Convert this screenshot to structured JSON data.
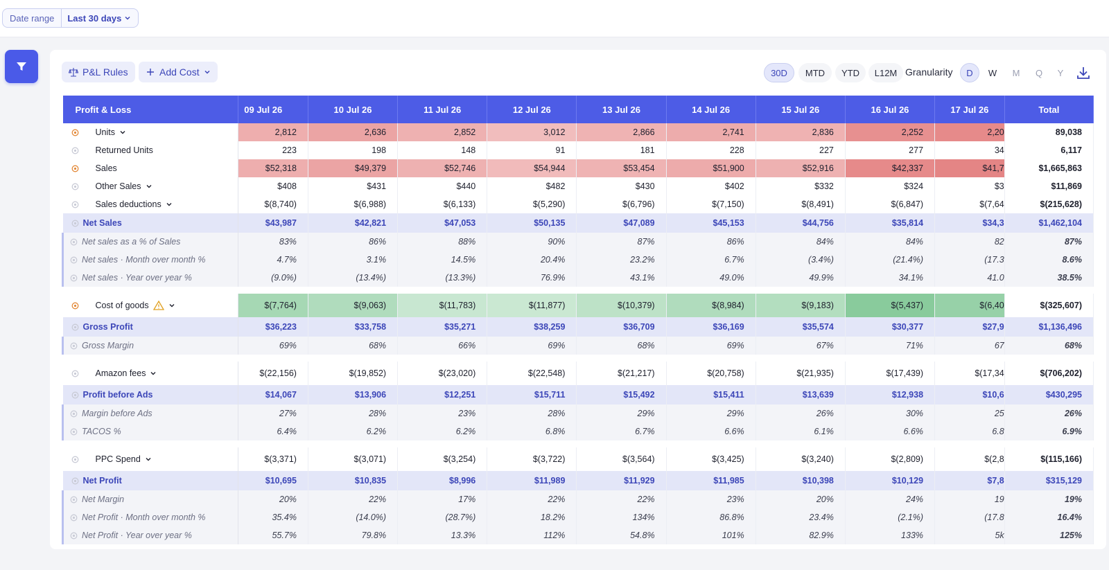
{
  "date_range": {
    "label": "Date range",
    "value": "Last 30 days"
  },
  "toolbar": {
    "pl_rules": "P&L Rules",
    "add_cost": "Add Cost",
    "periods": [
      "30D",
      "MTD",
      "YTD",
      "L12M"
    ],
    "active_period": "30D",
    "granularity_label": "Granularity",
    "granularity": [
      "D",
      "W",
      "M",
      "Q",
      "Y"
    ],
    "active_granularity": "D"
  },
  "table": {
    "header_first": "Profit & Loss",
    "dates": [
      "09 Jul 26",
      "10 Jul 26",
      "11 Jul 26",
      "12 Jul 26",
      "13 Jul 26",
      "14 Jul 26",
      "15 Jul 26",
      "16 Jul 26",
      "17 Jul 26"
    ],
    "total_label": "Total",
    "rows": [
      {
        "label": "Units",
        "type": "item",
        "icon": "orange",
        "chevron": true,
        "values": [
          "2,812",
          "2,636",
          "2,852",
          "3,012",
          "2,866",
          "2,741",
          "2,836",
          "2,252",
          "2,20"
        ],
        "total": "89,038",
        "heat": "red",
        "intensity": [
          0.45,
          0.55,
          0.42,
          0.3,
          0.4,
          0.47,
          0.41,
          0.75,
          0.8
        ]
      },
      {
        "label": "Returned Units",
        "type": "item",
        "icon": "gray",
        "values": [
          "223",
          "198",
          "148",
          "91",
          "181",
          "228",
          "227",
          "277",
          "34"
        ],
        "total": "6,117"
      },
      {
        "label": "Sales",
        "type": "item",
        "icon": "orange",
        "values": [
          "$52,318",
          "$49,379",
          "$52,746",
          "$54,944",
          "$53,454",
          "$51,900",
          "$52,916",
          "$42,337",
          "$41,7"
        ],
        "total": "$1,665,863",
        "heat": "red",
        "intensity": [
          0.45,
          0.55,
          0.42,
          0.32,
          0.4,
          0.48,
          0.42,
          0.8,
          0.85
        ]
      },
      {
        "label": "Other Sales",
        "type": "item",
        "icon": "gray",
        "chevron": true,
        "values": [
          "$408",
          "$431",
          "$440",
          "$482",
          "$430",
          "$402",
          "$332",
          "$324",
          "$3"
        ],
        "total": "$11,869"
      },
      {
        "label": "Sales deductions",
        "type": "item",
        "icon": "gray",
        "chevron": true,
        "values": [
          "$(8,740)",
          "$(6,988)",
          "$(6,133)",
          "$(5,290)",
          "$(6,796)",
          "$(7,150)",
          "$(8,491)",
          "$(6,847)",
          "$(7,64"
        ],
        "total": "$(215,628)"
      },
      {
        "label": "Net Sales",
        "type": "net",
        "values": [
          "$43,987",
          "$42,821",
          "$47,053",
          "$50,135",
          "$47,089",
          "$45,153",
          "$44,756",
          "$35,814",
          "$34,3"
        ],
        "total": "$1,462,104"
      },
      {
        "label": "Net sales as a % of Sales",
        "type": "pct",
        "values": [
          "83%",
          "86%",
          "88%",
          "90%",
          "87%",
          "86%",
          "84%",
          "84%",
          "82"
        ],
        "total": "87%"
      },
      {
        "label": "Net sales · Month over month %",
        "type": "pct",
        "values": [
          "4.7%",
          "3.1%",
          "14.5%",
          "20.4%",
          "23.2%",
          "6.7%",
          "(3.4%)",
          "(21.4%)",
          "(17.3"
        ],
        "total": "8.6%"
      },
      {
        "label": "Net sales · Year over year %",
        "type": "pct",
        "values": [
          "(9.0%)",
          "(13.4%)",
          "(13.3%)",
          "76.9%",
          "43.1%",
          "49.0%",
          "49.9%",
          "34.1%",
          "41.0"
        ],
        "total": "38.5%"
      },
      {
        "type": "gap"
      },
      {
        "label": "Cost of goods",
        "type": "item",
        "big": true,
        "icon": "orange",
        "warn": true,
        "chevron": true,
        "values": [
          "$(7,764)",
          "$(9,063)",
          "$(11,783)",
          "$(11,877)",
          "$(10,379)",
          "$(8,984)",
          "$(9,183)",
          "$(5,437)",
          "$(6,40"
        ],
        "total": "$(325,607)",
        "heat": "green",
        "intensity": [
          0.55,
          0.45,
          0.2,
          0.18,
          0.32,
          0.45,
          0.42,
          0.85,
          0.7
        ]
      },
      {
        "label": "Gross Profit",
        "type": "net",
        "values": [
          "$36,223",
          "$33,758",
          "$35,271",
          "$38,259",
          "$36,709",
          "$36,169",
          "$35,574",
          "$30,377",
          "$27,9"
        ],
        "total": "$1,136,496"
      },
      {
        "label": "Gross Margin",
        "type": "pct",
        "values": [
          "69%",
          "68%",
          "66%",
          "69%",
          "68%",
          "69%",
          "67%",
          "71%",
          "67"
        ],
        "total": "68%"
      },
      {
        "type": "gap"
      },
      {
        "label": "Amazon fees",
        "type": "item",
        "big": true,
        "icon": "gray",
        "chevron": true,
        "values": [
          "$(22,156)",
          "$(19,852)",
          "$(23,020)",
          "$(22,548)",
          "$(21,217)",
          "$(20,758)",
          "$(21,935)",
          "$(17,439)",
          "$(17,34"
        ],
        "total": "$(706,202)"
      },
      {
        "label": "Profit before Ads",
        "type": "net",
        "values": [
          "$14,067",
          "$13,906",
          "$12,251",
          "$15,711",
          "$15,492",
          "$15,411",
          "$13,639",
          "$12,938",
          "$10,6"
        ],
        "total": "$430,295"
      },
      {
        "label": "Margin before Ads",
        "type": "pct",
        "values": [
          "27%",
          "28%",
          "23%",
          "28%",
          "29%",
          "29%",
          "26%",
          "30%",
          "25"
        ],
        "total": "26%"
      },
      {
        "label": "TACOS %",
        "type": "pct",
        "values": [
          "6.4%",
          "6.2%",
          "6.2%",
          "6.8%",
          "6.7%",
          "6.6%",
          "6.1%",
          "6.6%",
          "6.8"
        ],
        "total": "6.9%"
      },
      {
        "type": "gap"
      },
      {
        "label": "PPC Spend",
        "type": "item",
        "big": true,
        "icon": "gray",
        "chevron": true,
        "values": [
          "$(3,371)",
          "$(3,071)",
          "$(3,254)",
          "$(3,722)",
          "$(3,564)",
          "$(3,425)",
          "$(3,240)",
          "$(2,809)",
          "$(2,8"
        ],
        "total": "$(115,166)"
      },
      {
        "label": "Net Profit",
        "type": "net",
        "values": [
          "$10,695",
          "$10,835",
          "$8,996",
          "$11,989",
          "$11,929",
          "$11,985",
          "$10,398",
          "$10,129",
          "$7,8"
        ],
        "total": "$315,129"
      },
      {
        "label": "Net Margin",
        "type": "pct",
        "values": [
          "20%",
          "22%",
          "17%",
          "22%",
          "22%",
          "23%",
          "20%",
          "24%",
          "19"
        ],
        "total": "19%"
      },
      {
        "label": "Net Profit · Month over month %",
        "type": "pct",
        "values": [
          "35.4%",
          "(14.0%)",
          "(28.7%)",
          "18.2%",
          "134%",
          "86.8%",
          "23.4%",
          "(2.1%)",
          "(17.8"
        ],
        "total": "16.4%"
      },
      {
        "label": "Net Profit · Year over year %",
        "type": "pct",
        "values": [
          "55.7%",
          "79.8%",
          "13.3%",
          "112%",
          "54.8%",
          "101%",
          "82.9%",
          "133%",
          "5k"
        ],
        "total": "125%"
      }
    ]
  },
  "colors": {
    "accent": "#4d5ce6",
    "heat_red": "#e06f6f",
    "heat_green": "#5cb97a",
    "net_row": "#e3e6f8"
  }
}
